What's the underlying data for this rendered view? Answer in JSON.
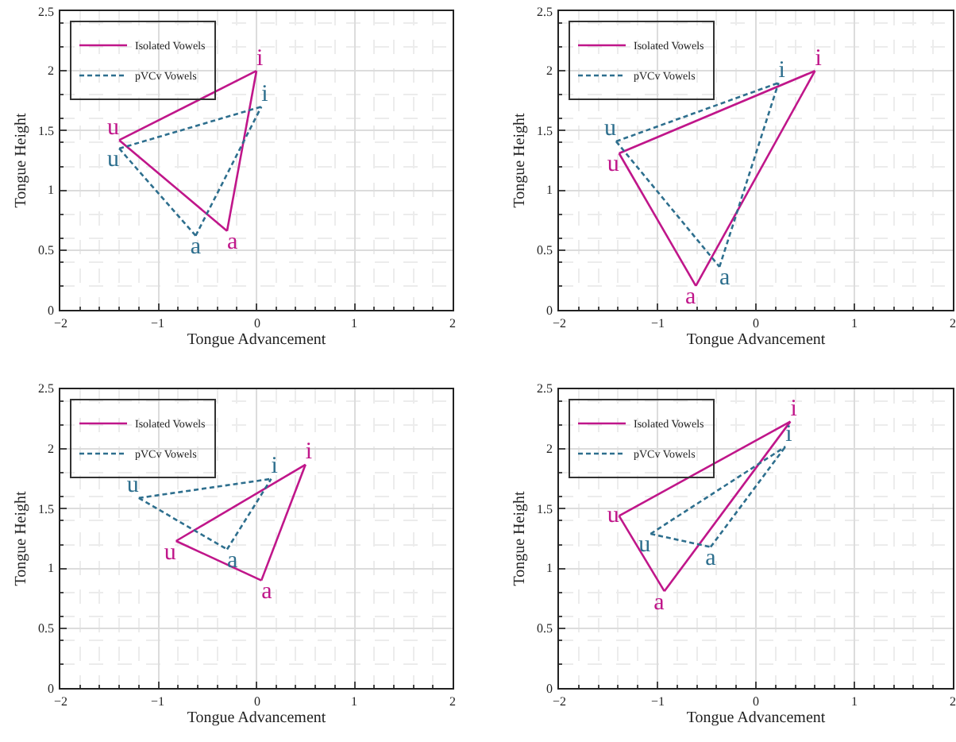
{
  "chart_data": [
    {
      "type": "line",
      "xlabel": "Tongue Advancement",
      "ylabel": "Tongue Height",
      "xlim": [
        -2,
        2
      ],
      "ylim": [
        0,
        2.5
      ],
      "xticks": [
        -2,
        -1,
        0,
        1,
        2
      ],
      "yticks": [
        0,
        0.5,
        1,
        1.5,
        2,
        2.5
      ],
      "grid": true,
      "legend": "top left",
      "marker": "none",
      "series": [
        {
          "name": "Isolated Vowels",
          "color": "#c0168a",
          "line_style": "solid",
          "x": [
            -1.4,
            0.0
          ],
          "values": [
            1.42,
            2.0
          ],
          "value_labels": [
            "u",
            "i"
          ]
        },
        {
          "color": "#c0168a",
          "line_style": "solid",
          "x": [
            -1.4,
            -0.3
          ],
          "values": [
            1.42,
            0.66
          ],
          "value_labels": [
            null,
            "a"
          ]
        },
        {
          "color": "#c0168a",
          "line_style": "solid",
          "x": [
            -0.3,
            0.0
          ],
          "values": [
            0.66,
            2.0
          ]
        },
        {
          "name": "pVCv Vowels",
          "color": "#2e6f8e",
          "line_style": "dashed",
          "x": [
            -1.4,
            0.05
          ],
          "values": [
            1.35,
            1.7
          ],
          "value_labels": [
            "u",
            "i"
          ]
        },
        {
          "color": "#2e6f8e",
          "line_style": "dashed",
          "x": [
            -1.4,
            -0.62
          ],
          "values": [
            1.35,
            0.62
          ],
          "value_labels": [
            null,
            "a"
          ]
        },
        {
          "color": "#2e6f8e",
          "line_style": "dashed",
          "x": [
            -0.62,
            0.05
          ],
          "values": [
            0.62,
            1.7
          ]
        }
      ]
    },
    {
      "type": "line",
      "xlabel": "Tongue Advancement",
      "ylabel": "Tongue Height",
      "xlim": [
        -2,
        2
      ],
      "ylim": [
        0,
        2.5
      ],
      "xticks": [
        -2,
        -1,
        0,
        1,
        2
      ],
      "yticks": [
        0,
        0.5,
        1,
        1.5,
        2,
        2.5
      ],
      "grid": true,
      "legend": "top left",
      "marker": "none",
      "series": [
        {
          "name": "Isolated Vowels",
          "color": "#c0168a",
          "line_style": "solid",
          "x": [
            -1.39,
            0.6
          ],
          "values": [
            1.31,
            2.0
          ],
          "value_labels": [
            "u",
            "i"
          ]
        },
        {
          "color": "#c0168a",
          "line_style": "solid",
          "x": [
            -1.39,
            -0.61
          ],
          "values": [
            1.31,
            0.2
          ],
          "value_labels": [
            null,
            "a"
          ]
        },
        {
          "color": "#c0168a",
          "line_style": "solid",
          "x": [
            -0.61,
            0.6
          ],
          "values": [
            0.2,
            2.0
          ]
        },
        {
          "name": "pVCv Vowels",
          "color": "#2e6f8e",
          "line_style": "dashed",
          "x": [
            -1.42,
            0.23
          ],
          "values": [
            1.41,
            1.9
          ],
          "value_labels": [
            "u",
            "i"
          ]
        },
        {
          "color": "#2e6f8e",
          "line_style": "dashed",
          "x": [
            -1.42,
            -0.37
          ],
          "values": [
            1.41,
            0.36
          ],
          "value_labels": [
            null,
            "a"
          ]
        },
        {
          "color": "#2e6f8e",
          "line_style": "dashed",
          "x": [
            -0.37,
            0.23
          ],
          "values": [
            0.36,
            1.9
          ]
        }
      ]
    },
    {
      "type": "line",
      "xlabel": "Tongue Advancement",
      "ylabel": "Tongue Height",
      "xlim": [
        -2,
        2
      ],
      "ylim": [
        0,
        2.5
      ],
      "xticks": [
        -2,
        -1,
        0,
        1,
        2
      ],
      "yticks": [
        0,
        0.5,
        1,
        1.5,
        2,
        2.5
      ],
      "grid": true,
      "legend": "top left",
      "marker": "none",
      "series": [
        {
          "name": "Isolated Vowels",
          "color": "#c0168a",
          "line_style": "solid",
          "x": [
            -0.82,
            0.5
          ],
          "values": [
            1.23,
            1.87
          ],
          "value_labels": [
            "u",
            "i"
          ]
        },
        {
          "color": "#c0168a",
          "line_style": "solid",
          "x": [
            -0.82,
            0.05
          ],
          "values": [
            1.23,
            0.9
          ],
          "value_labels": [
            null,
            "a"
          ]
        },
        {
          "color": "#c0168a",
          "line_style": "solid",
          "x": [
            0.05,
            0.5
          ],
          "values": [
            0.9,
            1.87
          ]
        },
        {
          "name": "pVCv Vowels",
          "color": "#2e6f8e",
          "line_style": "dashed",
          "x": [
            -1.2,
            0.15
          ],
          "values": [
            1.59,
            1.75
          ],
          "value_labels": [
            "u",
            "i"
          ]
        },
        {
          "color": "#2e6f8e",
          "line_style": "dashed",
          "x": [
            -1.2,
            -0.3
          ],
          "values": [
            1.59,
            1.16
          ],
          "value_labels": [
            null,
            "a"
          ]
        },
        {
          "color": "#2e6f8e",
          "line_style": "dashed",
          "x": [
            -0.3,
            0.15
          ],
          "values": [
            1.16,
            1.75
          ]
        }
      ]
    },
    {
      "type": "line",
      "xlabel": "Tongue Advancement",
      "ylabel": "Tongue Height",
      "xlim": [
        -2,
        2
      ],
      "ylim": [
        0,
        2.5
      ],
      "xticks": [
        -2,
        -1,
        0,
        1,
        2
      ],
      "yticks": [
        0,
        0.5,
        1,
        1.5,
        2,
        2.5
      ],
      "grid": true,
      "legend": "top left",
      "marker": "none",
      "series": [
        {
          "name": "Isolated Vowels",
          "color": "#c0168a",
          "line_style": "solid",
          "x": [
            -1.39,
            0.35
          ],
          "values": [
            1.44,
            2.23
          ],
          "value_labels": [
            "u",
            "i"
          ]
        },
        {
          "color": "#c0168a",
          "line_style": "solid",
          "x": [
            -1.39,
            -0.93
          ],
          "values": [
            1.44,
            0.81
          ],
          "value_labels": [
            null,
            "a"
          ]
        },
        {
          "color": "#c0168a",
          "line_style": "solid",
          "x": [
            -0.93,
            0.35
          ],
          "values": [
            0.81,
            2.23
          ]
        },
        {
          "name": "pVCv Vowels",
          "color": "#2e6f8e",
          "line_style": "dashed",
          "x": [
            -1.07,
            0.3
          ],
          "values": [
            1.29,
            2.02
          ],
          "value_labels": [
            "u",
            "i"
          ]
        },
        {
          "color": "#2e6f8e",
          "line_style": "dashed",
          "x": [
            -1.07,
            -0.46
          ],
          "values": [
            1.29,
            1.18
          ],
          "value_labels": [
            null,
            "a"
          ]
        },
        {
          "color": "#2e6f8e",
          "line_style": "dashed",
          "x": [
            -0.46,
            0.3
          ],
          "values": [
            1.18,
            2.02
          ]
        }
      ]
    }
  ]
}
